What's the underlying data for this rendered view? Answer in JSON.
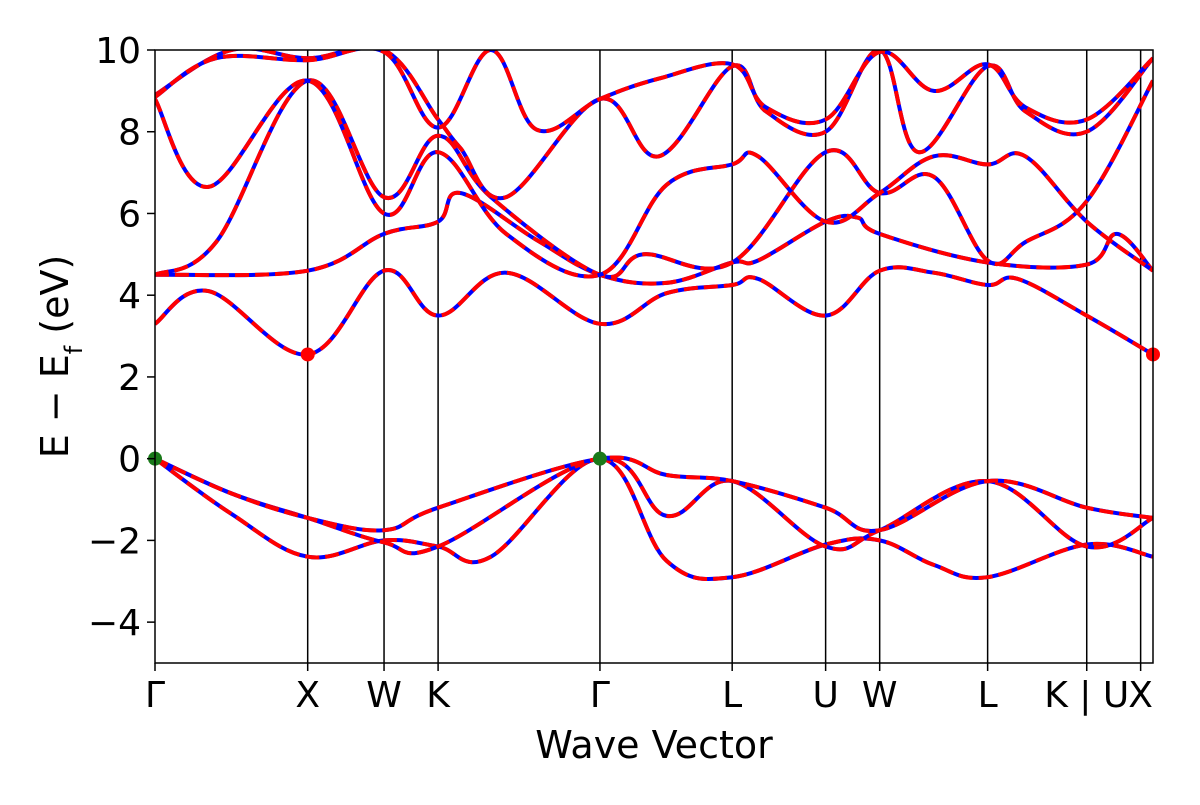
{
  "chart_data": {
    "type": "line",
    "xlabel": "Wave Vector",
    "ylabel": "E − E",
    "ylabel_sub": "f",
    "ylabel_unit": " (eV)",
    "ylim": [
      -5,
      10
    ],
    "yticks": [
      -4,
      -2,
      0,
      2,
      4,
      6,
      8,
      10
    ],
    "ytick_labels": [
      "−4",
      "−2",
      "0",
      "2",
      "4",
      "6",
      "8",
      "10"
    ],
    "xlim": [
      0,
      6.536
    ],
    "kpoints": [
      {
        "label": "Γ",
        "x": 0.0
      },
      {
        "label": "X",
        "x": 1.0
      },
      {
        "label": "W",
        "x": 1.5
      },
      {
        "label": "K",
        "x": 1.854
      },
      {
        "label": "Γ",
        "x": 2.914
      },
      {
        "label": "L",
        "x": 3.78
      },
      {
        "label": "U",
        "x": 4.392
      },
      {
        "label": "W",
        "x": 4.746
      },
      {
        "label": "L",
        "x": 5.453
      },
      {
        "label": "K | U",
        "x": 6.102
      },
      {
        "label": "X",
        "x": 6.455
      }
    ],
    "grid": false,
    "series": [
      {
        "values": [
          [
            0.0,
            0.0
          ],
          [
            0.5,
            -1.35
          ],
          [
            1.0,
            -2.4
          ],
          [
            1.5,
            -2.0
          ],
          [
            1.854,
            -2.15
          ],
          [
            2.2,
            -2.4
          ],
          [
            2.914,
            0.0
          ],
          [
            3.35,
            -2.5
          ],
          [
            3.78,
            -2.9
          ],
          [
            4.392,
            -2.1
          ],
          [
            4.746,
            -2.0
          ],
          [
            5.1,
            -2.6
          ],
          [
            5.453,
            -2.9
          ],
          [
            6.102,
            -2.1
          ],
          [
            6.536,
            -2.4
          ]
        ]
      },
      {
        "values": [
          [
            0.0,
            0.0
          ],
          [
            0.5,
            -0.85
          ],
          [
            1.0,
            -1.45
          ],
          [
            1.5,
            -2.05
          ],
          [
            1.854,
            -2.15
          ],
          [
            2.914,
            0.0
          ],
          [
            3.35,
            -1.4
          ],
          [
            3.78,
            -0.55
          ],
          [
            4.392,
            -2.15
          ],
          [
            4.746,
            -1.75
          ],
          [
            5.453,
            -0.55
          ],
          [
            6.102,
            -2.15
          ],
          [
            6.536,
            -1.45
          ]
        ]
      },
      {
        "values": [
          [
            0.0,
            0.0
          ],
          [
            0.5,
            -0.85
          ],
          [
            1.0,
            -1.45
          ],
          [
            1.5,
            -1.75
          ],
          [
            1.854,
            -1.2
          ],
          [
            2.914,
            0.0
          ],
          [
            3.35,
            -0.4
          ],
          [
            3.78,
            -0.55
          ],
          [
            4.392,
            -1.2
          ],
          [
            4.746,
            -1.75
          ],
          [
            5.453,
            -0.55
          ],
          [
            6.102,
            -1.2
          ],
          [
            6.536,
            -1.45
          ]
        ]
      },
      {
        "values": [
          [
            0.0,
            3.3
          ],
          [
            0.35,
            4.1
          ],
          [
            1.0,
            2.55
          ],
          [
            1.5,
            4.6
          ],
          [
            1.854,
            3.5
          ],
          [
            2.3,
            4.55
          ],
          [
            2.914,
            3.3
          ],
          [
            3.35,
            4.05
          ],
          [
            3.78,
            4.25
          ],
          [
            3.95,
            4.4
          ],
          [
            4.392,
            3.5
          ],
          [
            4.746,
            4.6
          ],
          [
            5.1,
            4.55
          ],
          [
            5.453,
            4.25
          ],
          [
            5.65,
            4.4
          ],
          [
            6.102,
            3.5
          ],
          [
            6.536,
            2.55
          ]
        ]
      },
      {
        "values": [
          [
            0.0,
            4.5
          ],
          [
            1.0,
            4.6
          ],
          [
            1.5,
            5.5
          ],
          [
            1.854,
            5.8
          ],
          [
            2.0,
            6.5
          ],
          [
            2.5,
            5.35
          ],
          [
            2.914,
            4.5
          ],
          [
            3.35,
            4.3
          ],
          [
            3.78,
            4.8
          ],
          [
            3.95,
            4.85
          ],
          [
            4.392,
            5.8
          ],
          [
            4.6,
            5.9
          ],
          [
            4.746,
            5.5
          ],
          [
            5.453,
            4.8
          ],
          [
            6.102,
            4.75
          ],
          [
            6.3,
            5.5
          ],
          [
            6.536,
            4.6
          ]
        ]
      },
      {
        "values": [
          [
            0.0,
            4.5
          ],
          [
            0.4,
            5.3
          ],
          [
            1.0,
            9.25
          ],
          [
            1.5,
            6.4
          ],
          [
            1.854,
            7.9
          ],
          [
            2.2,
            6.4
          ],
          [
            2.914,
            4.5
          ],
          [
            3.2,
            5.0
          ],
          [
            3.78,
            4.8
          ],
          [
            4.392,
            7.5
          ],
          [
            4.746,
            6.5
          ],
          [
            5.1,
            6.9
          ],
          [
            5.453,
            4.85
          ],
          [
            5.7,
            5.3
          ],
          [
            6.102,
            6.3
          ],
          [
            6.536,
            9.25
          ]
        ]
      },
      {
        "values": [
          [
            0.0,
            8.8
          ],
          [
            0.35,
            6.65
          ],
          [
            1.0,
            9.25
          ],
          [
            1.5,
            6.0
          ],
          [
            1.854,
            7.5
          ],
          [
            2.3,
            5.5
          ],
          [
            2.914,
            4.5
          ],
          [
            3.35,
            6.7
          ],
          [
            3.78,
            7.2
          ],
          [
            3.95,
            7.4
          ],
          [
            4.392,
            5.8
          ],
          [
            4.746,
            6.5
          ],
          [
            5.1,
            7.4
          ],
          [
            5.453,
            7.2
          ],
          [
            5.7,
            7.4
          ],
          [
            6.102,
            5.8
          ],
          [
            6.536,
            4.6
          ]
        ]
      },
      {
        "values": [
          [
            0.0,
            8.9
          ],
          [
            0.5,
            10.0
          ],
          [
            1.0,
            9.8
          ],
          [
            1.5,
            10.0
          ],
          [
            1.854,
            8.3
          ],
          [
            2.0,
            7.6
          ],
          [
            2.3,
            6.4
          ],
          [
            2.914,
            8.8
          ],
          [
            3.3,
            7.4
          ],
          [
            3.78,
            9.6
          ],
          [
            4.0,
            8.5
          ],
          [
            4.392,
            8.0
          ],
          [
            4.746,
            10.0
          ],
          [
            5.0,
            7.5
          ],
          [
            5.453,
            9.6
          ],
          [
            5.7,
            8.5
          ],
          [
            6.102,
            8.0
          ],
          [
            6.536,
            9.8
          ]
        ]
      },
      {
        "values": [
          [
            0.0,
            8.85
          ],
          [
            0.4,
            9.8
          ],
          [
            1.0,
            9.75
          ],
          [
            1.5,
            9.95
          ],
          [
            1.854,
            8.1
          ],
          [
            2.2,
            10.0
          ],
          [
            2.5,
            8.05
          ],
          [
            2.914,
            8.8
          ],
          [
            3.3,
            9.3
          ],
          [
            3.78,
            9.65
          ],
          [
            4.0,
            8.6
          ],
          [
            4.392,
            8.3
          ],
          [
            4.746,
            9.95
          ],
          [
            5.1,
            9.0
          ],
          [
            5.453,
            9.65
          ],
          [
            5.7,
            8.6
          ],
          [
            6.102,
            8.3
          ],
          [
            6.536,
            9.8
          ]
        ]
      }
    ],
    "markers": [
      {
        "name": "vbm",
        "x": 0.0,
        "y": 0.0,
        "color": "#1a7a1a"
      },
      {
        "name": "vbm",
        "x": 2.914,
        "y": 0.0,
        "color": "#1a7a1a"
      },
      {
        "name": "cbm",
        "x": 1.0,
        "y": 2.55,
        "color": "#ff0000"
      },
      {
        "name": "cbm",
        "x": 6.536,
        "y": 2.55,
        "color": "#ff0000"
      }
    ],
    "colors": {
      "band_solid": "#0000ff",
      "band_dashed": "#ff0000",
      "kline": "#000000"
    }
  }
}
